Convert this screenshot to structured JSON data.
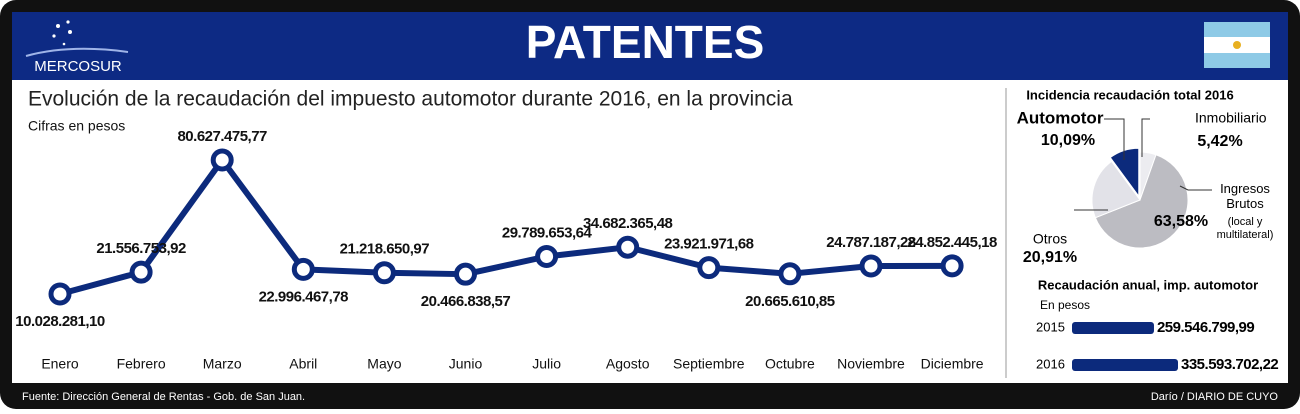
{
  "header": {
    "title": "PATENTES",
    "logo": "MERCOSUR"
  },
  "chart_data": [
    {
      "type": "line",
      "title": "Evolución de la recaudación del impuesto automotor durante 2016, en la provincia",
      "subtitle": "Cifras en pesos",
      "categories": [
        "Enero",
        "Febrero",
        "Marzo",
        "Abril",
        "Mayo",
        "Junio",
        "Julio",
        "Agosto",
        "Septiembre",
        "Octubre",
        "Noviembre",
        "Diciembre"
      ],
      "values": [
        10028281.1,
        21556753.92,
        80627475.77,
        22996467.78,
        21218650.97,
        20466838.57,
        29789653.64,
        34682365.48,
        23921971.68,
        20665610.85,
        24787187.28,
        24852445.18
      ],
      "value_labels": [
        "10.028.281,10",
        "21.556.753,92",
        "80.627.475,77",
        "22.996.467,78",
        "21.218.650,97",
        "20.466.838,57",
        "29.789.653,64",
        "34.682.365,48",
        "23.921.971,68",
        "20.665.610,85",
        "24.787.187,28",
        "24.852.445,18"
      ],
      "color": "#0c2a7c"
    },
    {
      "type": "pie",
      "title": "Incidencia recaudación total 2016",
      "categories": [
        "Automotor",
        "Inmobiliario",
        "Ingresos Brutos",
        "Otros"
      ],
      "values": [
        10.09,
        5.42,
        63.58,
        20.91
      ],
      "value_labels": [
        "10,09%",
        "5,42%",
        "63,58%",
        "20,91%"
      ],
      "colors": [
        "#0c2a7c",
        "#ececf0",
        "#bcbcc2",
        "#e2e2e8"
      ],
      "annotations": [
        "(local y multilateral)"
      ]
    },
    {
      "type": "bar",
      "title": "Recaudación anual, imp. automotor",
      "subtitle": "En pesos",
      "categories": [
        "2015",
        "2016"
      ],
      "values": [
        259546799.99,
        335593702.22
      ],
      "value_labels": [
        "259.546.799,99",
        "335.593.702,22"
      ],
      "color": "#0c2a7c"
    }
  ],
  "footer": {
    "source": "Fuente: Dirección General de Rentas - Gob. de San Juan.",
    "credit": "Darío / DIARIO DE CUYO"
  }
}
